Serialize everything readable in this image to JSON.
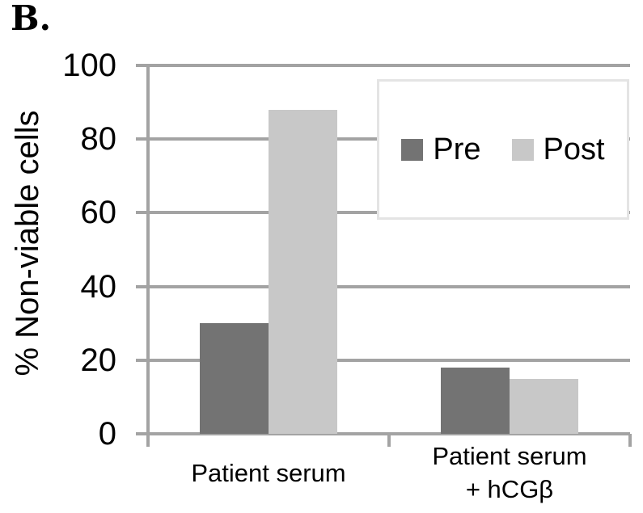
{
  "panel_label": "B.",
  "chart_data": {
    "type": "bar",
    "title": "",
    "xlabel": "",
    "ylabel": "% Non-viable cells",
    "categories": [
      "Patient serum",
      "Patient serum\n+ hCGβ"
    ],
    "series": [
      {
        "name": "Pre",
        "color": "#737373",
        "values": [
          30,
          18
        ]
      },
      {
        "name": "Post",
        "color": "#C8C8C8",
        "values": [
          88,
          15
        ]
      }
    ],
    "ylim": [
      0,
      100
    ],
    "y_ticks": [
      0,
      20,
      40,
      60,
      80,
      100
    ],
    "grid": true,
    "gridline_color": "#A3A3A3",
    "axis_color": "#A3A3A3",
    "legend_position": "top-right",
    "legend_border_color": "#E4E4E4",
    "background_color": "#FFFFFF"
  }
}
